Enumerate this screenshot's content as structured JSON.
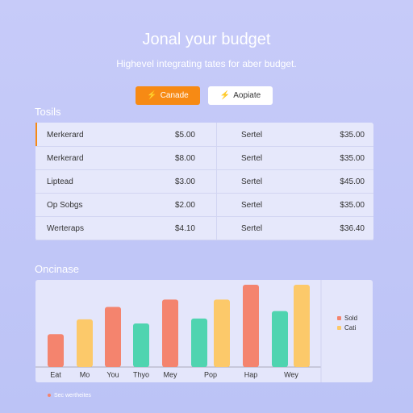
{
  "header": {
    "title": "Jonal your budget",
    "subtitle": "Highevel integrating tates for aber budget."
  },
  "buttons": [
    {
      "label": "Canade",
      "icon": "⚡"
    },
    {
      "label": "Aopiate",
      "icon": "⚡"
    }
  ],
  "table": {
    "title": "Tosils",
    "rows": [
      [
        "Merkerard",
        "$5.00",
        "Sertel",
        "$35.00"
      ],
      [
        "Merkerard",
        "$8.00",
        "Sertel",
        "$35.00"
      ],
      [
        "Liptead",
        "$3.00",
        "Sertel",
        "$45.00"
      ],
      [
        "Op Sobgs",
        "$2.00",
        "Sertel",
        "$35.00"
      ],
      [
        "Werteraps",
        "$4.10",
        "Sertel",
        "$36.40"
      ]
    ]
  },
  "chart_data": {
    "type": "bar",
    "title": "Oncinase",
    "categories": [
      "Eat",
      "Mo",
      "You",
      "Thyo",
      "Mey",
      "Pop",
      null,
      "Hap",
      "Wey",
      null
    ],
    "values": [
      40,
      58,
      73,
      53,
      82,
      59,
      82,
      100,
      68,
      100
    ],
    "colors": [
      "#f4846e",
      "#fcc96a",
      "#f4846e",
      "#4fd4b0",
      "#f4846e",
      "#4fd4b0",
      "#fcc96a",
      "#f4846e",
      "#4fd4b0",
      "#fcc96a"
    ],
    "legend": [
      {
        "name": "Sold",
        "color": "#f4846e"
      },
      {
        "name": "Cati",
        "color": "#fcc96a"
      }
    ],
    "footnote": "Sec wertheites"
  }
}
